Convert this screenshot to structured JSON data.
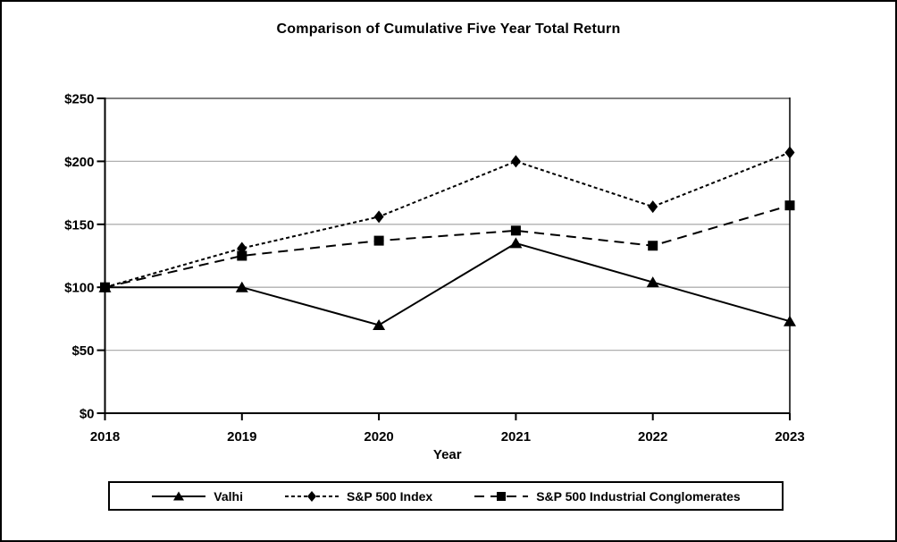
{
  "page": {
    "background": "#ffffff",
    "frame_color": "#000000"
  },
  "chart_data": {
    "type": "line",
    "title": "Comparison of Cumulative Five Year Total Return",
    "xlabel": "Year",
    "ylabel": "",
    "categories": [
      "2018",
      "2019",
      "2020",
      "2021",
      "2022",
      "2023"
    ],
    "y_ticks": [
      "$0",
      "$50",
      "$100",
      "$150",
      "$200",
      "$250"
    ],
    "y_tick_values": [
      0,
      50,
      100,
      150,
      200,
      250
    ],
    "ylim": [
      0,
      250
    ],
    "grid": true,
    "legend_position": "bottom",
    "colors": {
      "series": "#000000",
      "gridline": "#b0b0b0",
      "plot_top_border": "#808080",
      "axis": "#000000"
    },
    "series": [
      {
        "name": "Valhi",
        "marker": "triangle",
        "line_style": "solid",
        "color": "#000000",
        "values": [
          100,
          100,
          70,
          135,
          104,
          73
        ]
      },
      {
        "name": "S&P 500 Index",
        "marker": "diamond",
        "line_style": "short-dash",
        "color": "#000000",
        "values": [
          100,
          131,
          156,
          200,
          164,
          207
        ]
      },
      {
        "name": "S&P 500 Industrial Conglomerates",
        "marker": "square",
        "line_style": "long-dash",
        "color": "#000000",
        "values": [
          100,
          125,
          137,
          145,
          133,
          165
        ]
      }
    ]
  }
}
